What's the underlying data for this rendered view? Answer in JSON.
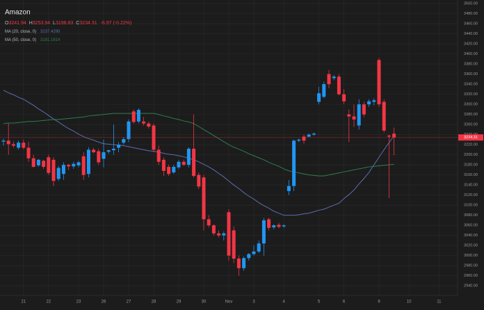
{
  "chart_data": {
    "type": "candlestick",
    "title": "Amazon",
    "ohlc_prefixes": [
      "O",
      "H",
      "L",
      "C"
    ],
    "change": "-6.97 (-0.22%)",
    "up_color": "#2196f3",
    "down_color": "#f23645",
    "grid": true,
    "categories": [
      null,
      null,
      null,
      null,
      "21",
      null,
      null,
      null,
      null,
      "22",
      null,
      null,
      null,
      null,
      null,
      "23",
      null,
      null,
      null,
      null,
      "26",
      null,
      null,
      null,
      null,
      "27",
      null,
      null,
      null,
      null,
      "28",
      null,
      null,
      null,
      null,
      "29",
      null,
      null,
      null,
      null,
      "30",
      null,
      null,
      null,
      null,
      "Nov",
      null,
      null,
      null,
      null,
      "3",
      null,
      null,
      null,
      null,
      null,
      "4",
      null,
      null,
      null,
      null,
      null,
      null,
      "5",
      null,
      null,
      null,
      null,
      "6",
      null,
      null,
      null,
      null,
      null,
      null,
      "9",
      null,
      null,
      null,
      null,
      null,
      "10",
      null,
      null,
      null,
      null,
      null,
      "11"
    ],
    "open": [
      3226,
      3228,
      3221,
      3214,
      3224,
      3214,
      3193,
      3179,
      3188,
      3195,
      3190,
      3152,
      3162,
      3180,
      3177,
      3179,
      3197,
      3162,
      3210,
      3207,
      3192,
      3206,
      3209,
      3214,
      3224,
      3231,
      3286,
      3266,
      3266,
      3262,
      3258,
      3210,
      3190,
      3176,
      3165,
      3175,
      3186,
      3180,
      3212,
      3160,
      3155,
      3072,
      3060,
      3044,
      3040,
      3086,
      3050,
      2994,
      2975,
      2995,
      3003,
      3008,
      3024,
      3072,
      3056,
      3061,
      3058,
      3128,
      3138,
      3228,
      3236,
      3236,
      3240,
      3305,
      3315,
      3360,
      3352,
      3355,
      3320,
      3280,
      3276,
      3258,
      3300,
      3300,
      3305,
      3388,
      3305,
      3238,
      3241.94,
      null,
      null,
      null,
      null,
      null,
      null,
      null,
      null,
      null
    ],
    "high": [
      3232,
      3262,
      3226,
      3228,
      3230,
      3226,
      3200,
      3192,
      3190,
      3200,
      3195,
      3178,
      3185,
      3182,
      3186,
      3188,
      3205,
      3215,
      3214,
      3212,
      3230,
      3210,
      3260,
      3225,
      3235,
      3270,
      3290,
      3292,
      3275,
      3266,
      3262,
      3218,
      3195,
      3180,
      3180,
      3190,
      3190,
      3215,
      3280,
      3165,
      3160,
      3080,
      3062,
      3050,
      3048,
      3092,
      3058,
      3000,
      2998,
      3005,
      3020,
      3030,
      3075,
      3075,
      3062,
      3065,
      3062,
      3150,
      3230,
      3232,
      3240,
      3242,
      3244,
      3335,
      3345,
      3368,
      3358,
      3360,
      3330,
      3290,
      3300,
      3310,
      3305,
      3310,
      3312,
      3392,
      3310,
      3240,
      3253.94,
      null,
      null,
      null,
      null,
      null,
      null,
      null,
      null,
      null
    ],
    "low": [
      3218,
      3200,
      3214,
      3210,
      3211,
      3186,
      3175,
      3176,
      3172,
      3160,
      3138,
      3148,
      3150,
      3170,
      3172,
      3175,
      3150,
      3155,
      3203,
      3180,
      3175,
      3202,
      3200,
      3205,
      3220,
      3225,
      3262,
      3262,
      3258,
      3252,
      3205,
      3180,
      3158,
      3158,
      3162,
      3172,
      3178,
      3175,
      3155,
      3132,
      3050,
      3056,
      3040,
      3036,
      3030,
      2990,
      2985,
      2960,
      2970,
      2990,
      3000,
      3005,
      3000,
      3050,
      3052,
      3054,
      3055,
      3120,
      3128,
      3225,
      3222,
      3234,
      3238,
      3300,
      3312,
      3332,
      3348,
      3318,
      3300,
      3225,
      3255,
      3250,
      3275,
      3295,
      3298,
      3295,
      3244,
      3114,
      3198.83,
      null,
      null,
      null,
      null,
      null,
      null,
      null,
      null,
      null
    ],
    "close": [
      3228,
      3221,
      3218,
      3224,
      3214,
      3193,
      3176,
      3190,
      3176,
      3164,
      3148,
      3174,
      3180,
      3177,
      3182,
      3185,
      3160,
      3210,
      3205,
      3185,
      3205,
      3209,
      3212,
      3220,
      3231,
      3266,
      3265,
      3289,
      3262,
      3256,
      3210,
      3186,
      3168,
      3162,
      3176,
      3186,
      3180,
      3212,
      3158,
      3137,
      3072,
      3060,
      3044,
      3040,
      3044,
      3000,
      2994,
      2975,
      2995,
      3003,
      3008,
      3024,
      3070,
      3055,
      3060,
      3057,
      3060,
      3138,
      3228,
      3230,
      3228,
      3240,
      3242,
      3322,
      3340,
      3340,
      3355,
      3320,
      3306,
      3276,
      3270,
      3300,
      3280,
      3306,
      3308,
      3300,
      3248,
      3236,
      3234.31,
      null,
      null,
      null,
      null,
      null,
      null,
      null,
      null,
      null
    ],
    "series": [
      {
        "name": "MA (20, close, 0)",
        "color": "#5b6eb0",
        "legend_value": "3237.4290",
        "values": [
          3328,
          3323,
          3319,
          3314,
          3310,
          3304,
          3298,
          3291,
          3285,
          3278,
          3271,
          3265,
          3258,
          3252,
          3247,
          3241,
          3236,
          3232,
          3229,
          3225,
          3222,
          3221,
          3220,
          3219,
          3218,
          3216,
          3214,
          3212,
          3210,
          3208,
          3207,
          3205,
          3203,
          3201,
          3200,
          3198,
          3196,
          3193,
          3190,
          3186,
          3181,
          3176,
          3170,
          3163,
          3156,
          3148,
          3140,
          3133,
          3125,
          3118,
          3112,
          3105,
          3099,
          3094,
          3088,
          3084,
          3080,
          3080,
          3080,
          3081,
          3083,
          3084,
          3087,
          3090,
          3092,
          3096,
          3100,
          3104,
          3113,
          3121,
          3130,
          3142,
          3153,
          3165,
          3180,
          3195,
          3210,
          3224,
          3237.43,
          null,
          null,
          null,
          null,
          null,
          null,
          null,
          null,
          null
        ]
      },
      {
        "name": "MA (50, close, 0)",
        "color": "#2e7d4f",
        "legend_value": "3181.1814",
        "values": [
          3262,
          3263,
          3263,
          3264,
          3265,
          3266,
          3266,
          3267,
          3268,
          3269,
          3270,
          3270,
          3271,
          3272,
          3273,
          3274,
          3275,
          3277,
          3278,
          3279,
          3280,
          3281,
          3282,
          3282,
          3282,
          3282,
          3282,
          3282,
          3282,
          3282,
          3282,
          3280,
          3277,
          3275,
          3272,
          3270,
          3267,
          3265,
          3262,
          3256,
          3250,
          3244,
          3238,
          3232,
          3226,
          3220,
          3215,
          3211,
          3207,
          3202,
          3198,
          3194,
          3190,
          3185,
          3181,
          3177,
          3172,
          3168,
          3166,
          3164,
          3162,
          3160,
          3159,
          3158,
          3158,
          3160,
          3162,
          3164,
          3166,
          3168,
          3170,
          3172,
          3174,
          3176,
          3177,
          3178,
          3179,
          3180,
          3181.18,
          null,
          null,
          null,
          null,
          null,
          null,
          null,
          null,
          null
        ]
      }
    ],
    "ylim": [
      2921,
      3507
    ],
    "yticks": [
      {
        "value": 2940,
        "label": "2940.00"
      },
      {
        "value": 2960,
        "label": "2960.00"
      },
      {
        "value": 2980,
        "label": "2980.00"
      },
      {
        "value": 3000,
        "label": "3000.00"
      },
      {
        "value": 3020,
        "label": "3020.00"
      },
      {
        "value": 3040,
        "label": "3040.00"
      },
      {
        "value": 3060,
        "label": "3060.00"
      },
      {
        "value": 3080,
        "label": "3080.00"
      },
      {
        "value": 3100,
        "label": "3100.00"
      },
      {
        "value": 3120,
        "label": "3120.00"
      },
      {
        "value": 3140,
        "label": "3140.00"
      },
      {
        "value": 3160,
        "label": "3160.00"
      },
      {
        "value": 3180,
        "label": "3180.00"
      },
      {
        "value": 3200,
        "label": "3200.00"
      },
      {
        "value": 3220,
        "label": "3220.00"
      },
      {
        "value": 3240,
        "label": "3240.00"
      },
      {
        "value": 3260,
        "label": "3260.00"
      },
      {
        "value": 3280,
        "label": "3280.00"
      },
      {
        "value": 3300,
        "label": "3300.00"
      },
      {
        "value": 3320,
        "label": "3320.00"
      },
      {
        "value": 3340,
        "label": "3340.00"
      },
      {
        "value": 3360,
        "label": "3360.00"
      },
      {
        "value": 3380,
        "label": "3380.00"
      },
      {
        "value": 3400,
        "label": "3400.00"
      },
      {
        "value": 3420,
        "label": "3420.00"
      },
      {
        "value": 3440,
        "label": "3440.00"
      },
      {
        "value": 3460,
        "label": "3460.00"
      },
      {
        "value": 3480,
        "label": "3480.00"
      },
      {
        "value": 3500,
        "label": "3500.00"
      }
    ]
  }
}
